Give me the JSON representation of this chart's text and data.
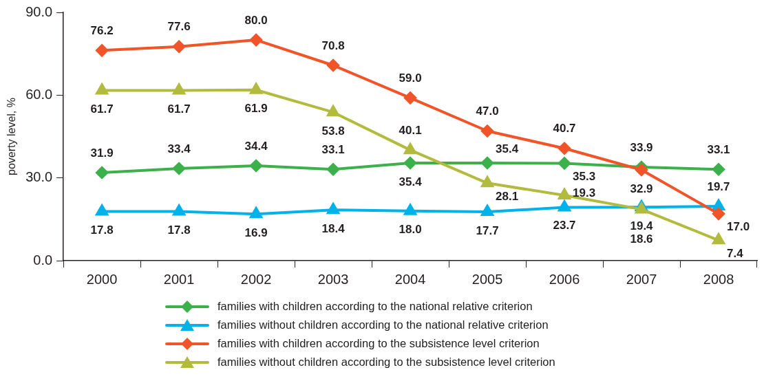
{
  "chart_data": {
    "type": "line",
    "ylabel": "poverty level, %",
    "categories": [
      "2000",
      "2001",
      "2002",
      "2003",
      "2004",
      "2005",
      "2006",
      "2007",
      "2008"
    ],
    "ylim": [
      0,
      90
    ],
    "yticks": [
      {
        "value": 0,
        "label": "0.0"
      },
      {
        "value": 30,
        "label": "30.0"
      },
      {
        "value": 60,
        "label": "60.0"
      },
      {
        "value": 90,
        "label": "90.0"
      }
    ],
    "grid": false,
    "legend": "bottom",
    "line_style": "solid",
    "series": [
      {
        "name": "families with children according to the national relative criterion",
        "color": "#3cb04a",
        "marker": "diamond",
        "values": [
          31.9,
          33.4,
          34.4,
          33.1,
          35.4,
          35.4,
          35.3,
          33.9,
          33.1
        ],
        "value_labels": [
          "31.9",
          "33.4",
          "34.4",
          "33.1",
          "35.4",
          "35.4",
          "35.3",
          "33.9",
          "33.1"
        ]
      },
      {
        "name": "families without children according to the national relative criterion",
        "color": "#00b2ea",
        "marker": "triangle",
        "values": [
          17.8,
          17.8,
          16.9,
          18.4,
          18.0,
          17.7,
          19.3,
          19.4,
          19.7
        ],
        "value_labels": [
          "17.8",
          "17.8",
          "16.9",
          "18.4",
          "18.0",
          "17.7",
          "19.3",
          "19.4",
          "19.7"
        ]
      },
      {
        "name": "families with children according to the subsistence  level criterion",
        "color": "#f05428",
        "marker": "diamond",
        "values": [
          76.2,
          77.6,
          80.0,
          70.8,
          59.0,
          47.0,
          40.7,
          32.9,
          17.0
        ],
        "value_labels": [
          "76.2",
          "77.6",
          "80.0",
          "70.8",
          "59.0",
          "47.0",
          "40.7",
          "32.9",
          "17.0"
        ]
      },
      {
        "name": "families without children according to the subsistence level criterion",
        "color": "#b2bb3e",
        "marker": "triangle",
        "values": [
          61.7,
          61.7,
          61.9,
          53.8,
          40.1,
          28.1,
          23.7,
          18.6,
          7.4
        ],
        "value_labels": [
          "61.7",
          "61.7",
          "61.9",
          "53.8",
          "40.1",
          "28.1",
          "23.7",
          "18.6",
          "7.4"
        ]
      }
    ]
  }
}
